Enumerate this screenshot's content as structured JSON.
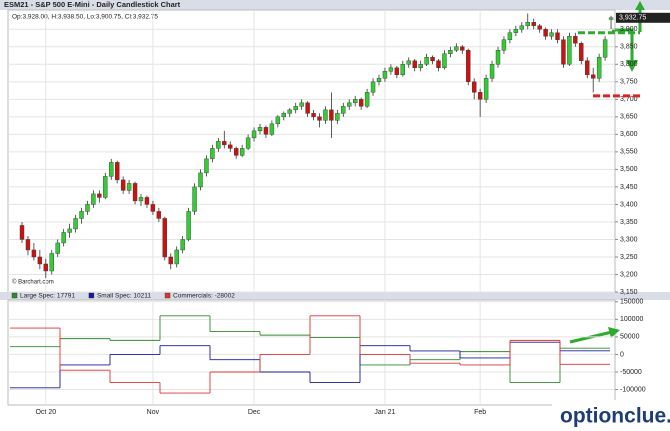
{
  "title": "ESM21 - S&P 500 E-Mini - Daily Candlestick Chart",
  "ohlc_label": "Op:3,928.00, H:3,938.50, Lo:3,900.75, Cl:3,932.75",
  "source": "© Barchart.com",
  "watermark": "optionclue.com",
  "chart_data": [
    {
      "type": "candlestick",
      "categories": [
        null,
        null,
        null,
        null,
        "Oct 20",
        null,
        null,
        null,
        null,
        null,
        null,
        null,
        null,
        null,
        null,
        null,
        null,
        null,
        null,
        null,
        null,
        null,
        "Nov",
        null,
        null,
        null,
        null,
        null,
        null,
        null,
        null,
        null,
        null,
        null,
        null,
        null,
        null,
        null,
        null,
        "Dec",
        null,
        null,
        null,
        null,
        null,
        null,
        null,
        null,
        null,
        null,
        null,
        null,
        null,
        null,
        null,
        null,
        null,
        null,
        null,
        null,
        null,
        "Jan 21",
        null,
        null,
        null,
        null,
        null,
        null,
        null,
        null,
        null,
        null,
        null,
        null,
        null,
        null,
        null,
        "Feb",
        null,
        null,
        null,
        null,
        null,
        null,
        null,
        null,
        null,
        null,
        null,
        null,
        null,
        null,
        null,
        null,
        null,
        null,
        null,
        null,
        null,
        null
      ],
      "candles": [
        [
          3340,
          3350,
          3290,
          3300
        ],
        [
          3300,
          3310,
          3255,
          3270
        ],
        [
          3270,
          3290,
          3240,
          3250
        ],
        [
          3250,
          3270,
          3215,
          3230
        ],
        [
          3230,
          3245,
          3190,
          3210
        ],
        [
          3210,
          3270,
          3200,
          3260
        ],
        [
          3260,
          3300,
          3250,
          3290
        ],
        [
          3290,
          3330,
          3280,
          3320
        ],
        [
          3320,
          3345,
          3305,
          3330
        ],
        [
          3330,
          3370,
          3320,
          3360
        ],
        [
          3360,
          3390,
          3345,
          3380
        ],
        [
          3380,
          3410,
          3370,
          3400
        ],
        [
          3400,
          3440,
          3390,
          3430
        ],
        [
          3430,
          3440,
          3405,
          3420
        ],
        [
          3420,
          3490,
          3415,
          3480
        ],
        [
          3480,
          3530,
          3470,
          3520
        ],
        [
          3520,
          3525,
          3460,
          3470
        ],
        [
          3470,
          3480,
          3430,
          3440
        ],
        [
          3440,
          3470,
          3430,
          3460
        ],
        [
          3460,
          3465,
          3400,
          3410
        ],
        [
          3410,
          3430,
          3395,
          3420
        ],
        [
          3420,
          3425,
          3390,
          3400
        ],
        [
          3400,
          3410,
          3370,
          3380
        ],
        [
          3380,
          3390,
          3350,
          3360
        ],
        [
          3360,
          3365,
          3240,
          3250
        ],
        [
          3250,
          3260,
          3215,
          3230
        ],
        [
          3230,
          3280,
          3220,
          3270
        ],
        [
          3270,
          3310,
          3260,
          3300
        ],
        [
          3300,
          3390,
          3295,
          3380
        ],
        [
          3380,
          3460,
          3370,
          3450
        ],
        [
          3450,
          3500,
          3440,
          3490
        ],
        [
          3490,
          3540,
          3480,
          3530
        ],
        [
          3530,
          3570,
          3520,
          3560
        ],
        [
          3560,
          3590,
          3550,
          3580
        ],
        [
          3580,
          3610,
          3560,
          3570
        ],
        [
          3570,
          3580,
          3550,
          3560
        ],
        [
          3560,
          3565,
          3530,
          3540
        ],
        [
          3540,
          3570,
          3535,
          3560
        ],
        [
          3560,
          3600,
          3555,
          3590
        ],
        [
          3590,
          3620,
          3580,
          3610
        ],
        [
          3610,
          3630,
          3600,
          3620
        ],
        [
          3620,
          3625,
          3590,
          3600
        ],
        [
          3600,
          3640,
          3595,
          3630
        ],
        [
          3630,
          3655,
          3620,
          3650
        ],
        [
          3650,
          3665,
          3640,
          3660
        ],
        [
          3660,
          3675,
          3650,
          3670
        ],
        [
          3670,
          3690,
          3660,
          3680
        ],
        [
          3680,
          3700,
          3670,
          3690
        ],
        [
          3690,
          3695,
          3650,
          3660
        ],
        [
          3660,
          3670,
          3640,
          3650
        ],
        [
          3650,
          3660,
          3620,
          3640
        ],
        [
          3640,
          3680,
          3630,
          3670
        ],
        [
          3670,
          3720,
          3590,
          3640
        ],
        [
          3640,
          3670,
          3630,
          3660
        ],
        [
          3660,
          3690,
          3650,
          3680
        ],
        [
          3680,
          3700,
          3670,
          3690
        ],
        [
          3690,
          3710,
          3680,
          3700
        ],
        [
          3700,
          3705,
          3670,
          3680
        ],
        [
          3680,
          3730,
          3675,
          3720
        ],
        [
          3720,
          3760,
          3710,
          3750
        ],
        [
          3750,
          3770,
          3740,
          3760
        ],
        [
          3760,
          3790,
          3750,
          3780
        ],
        [
          3780,
          3800,
          3770,
          3790
        ],
        [
          3790,
          3795,
          3760,
          3770
        ],
        [
          3770,
          3810,
          3765,
          3800
        ],
        [
          3800,
          3820,
          3790,
          3810
        ],
        [
          3810,
          3815,
          3780,
          3790
        ],
        [
          3790,
          3810,
          3780,
          3800
        ],
        [
          3800,
          3830,
          3795,
          3820
        ],
        [
          3820,
          3825,
          3800,
          3810
        ],
        [
          3810,
          3815,
          3780,
          3790
        ],
        [
          3790,
          3840,
          3785,
          3830
        ],
        [
          3830,
          3850,
          3820,
          3840
        ],
        [
          3840,
          3860,
          3835,
          3850
        ],
        [
          3850,
          3855,
          3830,
          3840
        ],
        [
          3840,
          3845,
          3740,
          3750
        ],
        [
          3750,
          3760,
          3700,
          3720
        ],
        [
          3720,
          3730,
          3650,
          3700
        ],
        [
          3700,
          3770,
          3690,
          3760
        ],
        [
          3760,
          3810,
          3750,
          3800
        ],
        [
          3800,
          3850,
          3790,
          3840
        ],
        [
          3840,
          3880,
          3830,
          3870
        ],
        [
          3870,
          3900,
          3860,
          3890
        ],
        [
          3890,
          3910,
          3880,
          3900
        ],
        [
          3900,
          3920,
          3890,
          3910
        ],
        [
          3910,
          3945,
          3900,
          3920
        ],
        [
          3920,
          3930,
          3900,
          3910
        ],
        [
          3910,
          3915,
          3890,
          3900
        ],
        [
          3900,
          3905,
          3870,
          3880
        ],
        [
          3880,
          3900,
          3870,
          3890
        ],
        [
          3890,
          3900,
          3860,
          3870
        ],
        [
          3870,
          3880,
          3790,
          3800
        ],
        [
          3800,
          3890,
          3795,
          3880
        ],
        [
          3880,
          3890,
          3850,
          3860
        ],
        [
          3860,
          3865,
          3800,
          3810
        ],
        [
          3810,
          3820,
          3760,
          3770
        ],
        [
          3770,
          3790,
          3720,
          3760
        ],
        [
          3760,
          3830,
          3750,
          3820
        ],
        [
          3820,
          3880,
          3810,
          3870
        ],
        [
          3928,
          3938.5,
          3900.75,
          3932.75
        ]
      ],
      "up_color": "#33cc33",
      "down_color": "#cc1111",
      "ylim": [
        3150,
        3955
      ],
      "yticks": [
        {
          "value": 3150,
          "label": "3,150"
        },
        {
          "value": 3200,
          "label": "3,200"
        },
        {
          "value": 3250,
          "label": "3,250"
        },
        {
          "value": 3300,
          "label": "3,300"
        },
        {
          "value": 3350,
          "label": "3,350"
        },
        {
          "value": 3400,
          "label": "3,400"
        },
        {
          "value": 3450,
          "label": "3,450"
        },
        {
          "value": 3500,
          "label": "3,500"
        },
        {
          "value": 3550,
          "label": "3,550"
        },
        {
          "value": 3600,
          "label": "3,600"
        },
        {
          "value": 3650,
          "label": "3,650"
        },
        {
          "value": 3700,
          "label": "3,700"
        },
        {
          "value": 3750,
          "label": "3,750"
        },
        {
          "value": 3800,
          "label": "3,800"
        },
        {
          "value": 3850,
          "label": "3,850"
        },
        {
          "value": 3900,
          "label": "3,900"
        }
      ],
      "grid": true,
      "last_price": 3932.75,
      "last_price_label": "3,932.75",
      "levels": [
        {
          "value": 3890,
          "color": "#2eaa2e"
        },
        {
          "value": 3710,
          "color": "#dd2222"
        }
      ]
    },
    {
      "type": "step",
      "series": [
        {
          "name": "Large Spec",
          "legend_label": "Large Spec: 17791",
          "color": "#2e8b2e",
          "values": [
            22000,
            45000,
            40000,
            110000,
            65000,
            55000,
            48000,
            -30000,
            -15000,
            8000,
            -80000,
            17791
          ]
        },
        {
          "name": "Small Spec",
          "legend_label": "Small Spec: 10211",
          "color": "#1a1a99",
          "values": [
            -95000,
            -30000,
            0,
            25000,
            -15000,
            -50000,
            -80000,
            25000,
            10000,
            -10000,
            35000,
            10211
          ]
        },
        {
          "name": "Commercials",
          "legend_label": "Commercials: -28002",
          "color": "#dd3333",
          "values": [
            75000,
            -45000,
            -80000,
            -110000,
            -50000,
            0,
            110000,
            0,
            -25000,
            -30000,
            40000,
            -28002
          ]
        }
      ],
      "ylim": [
        -144000,
        155000
      ],
      "yticks": [
        150000,
        100000,
        50000,
        0,
        -50000,
        -100000
      ],
      "grid": true
    }
  ]
}
